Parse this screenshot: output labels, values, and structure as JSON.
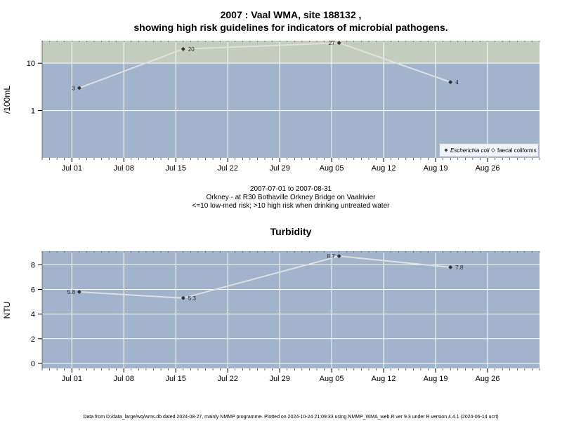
{
  "chart_data": [
    {
      "type": "line",
      "title_line1": "2007 : Vaal WMA, site 188132 ,",
      "title_line2": "showing high risk guidelines for indicators of microbial pathogens.",
      "ylabel": "/100mL",
      "yscale": "log",
      "ylim": [
        0.1,
        30
      ],
      "yticks": [
        1,
        10
      ],
      "ytick_labels": [
        "1",
        "10"
      ],
      "high_risk_threshold": 10,
      "xlim": [
        "2007-06-27",
        "2007-09-02"
      ],
      "xticks": [
        "2007-07-01",
        "2007-07-08",
        "2007-07-15",
        "2007-07-22",
        "2007-07-29",
        "2007-08-05",
        "2007-08-12",
        "2007-08-19",
        "2007-08-26"
      ],
      "xtick_labels": [
        "Jul 01",
        "Jul 08",
        "Jul 15",
        "Jul 22",
        "Jul 29",
        "Aug 05",
        "Aug 12",
        "Aug 19",
        "Aug 26"
      ],
      "series": [
        {
          "name": "Escherichia coli",
          "x": [
            "2007-07-02",
            "2007-07-16",
            "2007-08-06",
            "2007-08-21"
          ],
          "values": [
            3,
            20,
            27,
            4
          ],
          "labels": [
            "3",
            "20",
            "27",
            "4"
          ]
        }
      ],
      "legend": {
        "placement": "bottom-right",
        "entries": [
          "Escherichia coli",
          "faecal coliforms"
        ]
      },
      "colors": {
        "low_risk": "#a2b4cc",
        "high_risk": "#c4ccbd",
        "line": "#e0e0e0",
        "marker": "#333333",
        "grid": "#ffffff"
      },
      "caption": [
        "2007-07-01 to 2007-08-31",
        "Orkney - at R30 Bothaville Orkney Bridge on Vaalrivier",
        "<=10 low-med risk; >10 high risk when drinking untreated water"
      ]
    },
    {
      "type": "line",
      "title": "Turbidity",
      "ylabel": "NTU",
      "ylim": [
        -0.4,
        9.1
      ],
      "yticks": [
        0,
        2,
        4,
        6,
        8
      ],
      "ytick_labels": [
        "0",
        "2",
        "4",
        "6",
        "8"
      ],
      "xlim": [
        "2007-06-27",
        "2007-09-02"
      ],
      "xticks": [
        "2007-07-01",
        "2007-07-08",
        "2007-07-15",
        "2007-07-22",
        "2007-07-29",
        "2007-08-05",
        "2007-08-12",
        "2007-08-19",
        "2007-08-26"
      ],
      "xtick_labels": [
        "Jul 01",
        "Jul 08",
        "Jul 15",
        "Jul 22",
        "Jul 29",
        "Aug 05",
        "Aug 12",
        "Aug 19",
        "Aug 26"
      ],
      "series": [
        {
          "x": [
            "2007-07-02",
            "2007-07-16",
            "2007-08-06",
            "2007-08-21"
          ],
          "values": [
            5.8,
            5.3,
            8.7,
            7.8
          ],
          "labels": [
            "5.8",
            "5.3",
            "8.7",
            "7.8"
          ]
        }
      ],
      "colors": {
        "background": "#a2b4cc",
        "line": "#e0e0e0",
        "marker": "#333333",
        "grid": "#ffffff"
      }
    }
  ],
  "footer": "Data from D:/data_large/wq/wms.db dated 2024-08-27, mainly NMMP programme. Plotted on 2024-10-24 21:09:33 using NMMP_WMA_web.R ver 9.3 under R version 4.4.1 (2024-06-14 ucrt)"
}
